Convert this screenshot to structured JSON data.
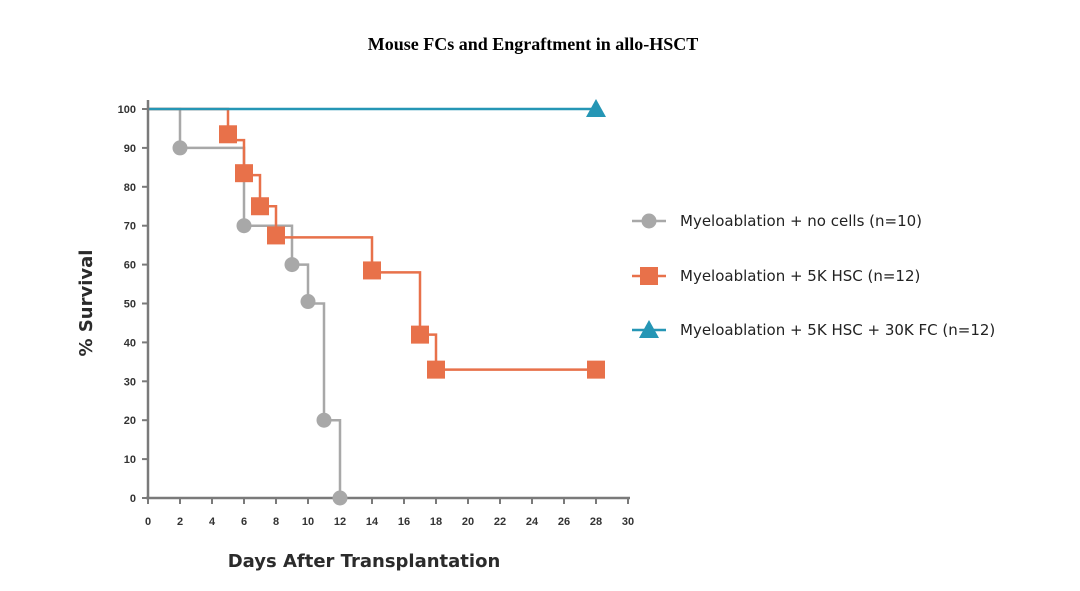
{
  "chart_data": {
    "type": "line",
    "title": "Mouse FCs and Engraftment in allo-HSCT",
    "xlabel": "Days After Transplantation",
    "ylabel": "% Survival",
    "xlim": [
      0,
      30
    ],
    "ylim": [
      0,
      100
    ],
    "xticks": [
      0,
      2,
      4,
      6,
      8,
      10,
      12,
      14,
      16,
      18,
      20,
      22,
      24,
      26,
      28,
      30
    ],
    "yticks": [
      0,
      10,
      20,
      30,
      40,
      50,
      60,
      70,
      80,
      90,
      100
    ],
    "grid": false,
    "legend_position": "right",
    "step": true,
    "series": [
      {
        "name": "Myeloablation + no cells (n=10)",
        "color": "#a8a8a8",
        "marker": "circle",
        "steps": [
          [
            0,
            100
          ],
          [
            2,
            90
          ],
          [
            6,
            70
          ],
          [
            9,
            60
          ],
          [
            10,
            50
          ],
          [
            11,
            20
          ],
          [
            12,
            0
          ]
        ],
        "points": [
          [
            2,
            90
          ],
          [
            6,
            70
          ],
          [
            9,
            60
          ],
          [
            10,
            50.5
          ],
          [
            11,
            20
          ],
          [
            12,
            0
          ]
        ]
      },
      {
        "name": "Myeloablation + 5K HSC (n=12)",
        "color": "#e8714a",
        "marker": "square",
        "steps": [
          [
            0,
            100
          ],
          [
            5,
            92
          ],
          [
            6,
            83
          ],
          [
            7,
            75
          ],
          [
            8,
            67
          ],
          [
            14,
            58
          ],
          [
            17,
            42
          ],
          [
            18,
            33
          ],
          [
            28,
            33
          ]
        ],
        "points": [
          [
            5,
            93.5
          ],
          [
            6,
            83.5
          ],
          [
            7,
            75
          ],
          [
            8,
            67.5
          ],
          [
            14,
            58.5
          ],
          [
            17,
            42
          ],
          [
            18,
            33
          ],
          [
            28,
            33
          ]
        ]
      },
      {
        "name": "Myeloablation + 5K HSC + 30K FC (n=12)",
        "color": "#2596b5",
        "marker": "triangle",
        "steps": [
          [
            0,
            100
          ],
          [
            28,
            100
          ]
        ],
        "points": [
          [
            28,
            100
          ]
        ]
      }
    ]
  }
}
